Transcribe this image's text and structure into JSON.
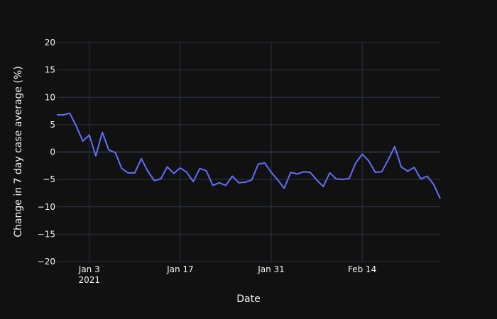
{
  "chart_data": {
    "type": "line",
    "title": "",
    "xlabel": "Date",
    "ylabel": "Change in 7 day case average (%)",
    "x_range": [
      "2020-12-29",
      "2021-02-26"
    ],
    "ylim": [
      -20,
      20
    ],
    "y_ticks": [
      -20,
      -15,
      -10,
      -5,
      0,
      5,
      10,
      15,
      20
    ],
    "x_ticks": [
      {
        "date": "2021-01-03",
        "label": "Jan 3",
        "sublabel": "2021"
      },
      {
        "date": "2021-01-17",
        "label": "Jan 17",
        "sublabel": ""
      },
      {
        "date": "2021-01-31",
        "label": "Jan 31",
        "sublabel": ""
      },
      {
        "date": "2021-02-14",
        "label": "Feb 14",
        "sublabel": ""
      }
    ],
    "grid": true,
    "legend": "none",
    "colors": {
      "background": "#111111",
      "grid": "#283442",
      "zeroline": "#283442",
      "line": "#636efa",
      "text": "#f2f5fa"
    },
    "series": [
      {
        "x": [
          "2020-12-29",
          "2020-12-30",
          "2020-12-31",
          "2021-01-01",
          "2021-01-02",
          "2021-01-03",
          "2021-01-04",
          "2021-01-05",
          "2021-01-06",
          "2021-01-07",
          "2021-01-08",
          "2021-01-09",
          "2021-01-10",
          "2021-01-11",
          "2021-01-12",
          "2021-01-13",
          "2021-01-14",
          "2021-01-15",
          "2021-01-16",
          "2021-01-17",
          "2021-01-18",
          "2021-01-19",
          "2021-01-20",
          "2021-01-21",
          "2021-01-22",
          "2021-01-23",
          "2021-01-24",
          "2021-01-25",
          "2021-01-26",
          "2021-01-27",
          "2021-01-28",
          "2021-01-29",
          "2021-01-30",
          "2021-01-31",
          "2021-02-01",
          "2021-02-02",
          "2021-02-03",
          "2021-02-04",
          "2021-02-05",
          "2021-02-06",
          "2021-02-07",
          "2021-02-08",
          "2021-02-09",
          "2021-02-10",
          "2021-02-11",
          "2021-02-12",
          "2021-02-13",
          "2021-02-14",
          "2021-02-15",
          "2021-02-16",
          "2021-02-17",
          "2021-02-18",
          "2021-02-19",
          "2021-02-20",
          "2021-02-21",
          "2021-02-22",
          "2021-02-23",
          "2021-02-24",
          "2021-02-25",
          "2021-02-26"
        ],
        "y": [
          6.8,
          6.8,
          7.1,
          4.7,
          2.0,
          3.1,
          -0.7,
          3.6,
          0.4,
          -0.1,
          -3.0,
          -3.8,
          -3.8,
          -1.2,
          -3.5,
          -5.2,
          -4.9,
          -2.7,
          -3.9,
          -2.9,
          -3.7,
          -5.4,
          -3.0,
          -3.4,
          -6.1,
          -5.6,
          -6.1,
          -4.4,
          -5.6,
          -5.5,
          -5.1,
          -2.2,
          -2.0,
          -3.7,
          -5.1,
          -6.6,
          -3.7,
          -4.0,
          -3.6,
          -3.7,
          -5.1,
          -6.3,
          -3.8,
          -4.9,
          -5.0,
          -4.8,
          -2.0,
          -0.4,
          -1.6,
          -3.7,
          -3.6,
          -1.4,
          1.0,
          -2.7,
          -3.5,
          -2.8,
          -4.9,
          -4.4,
          -5.9,
          -8.5
        ]
      }
    ]
  }
}
